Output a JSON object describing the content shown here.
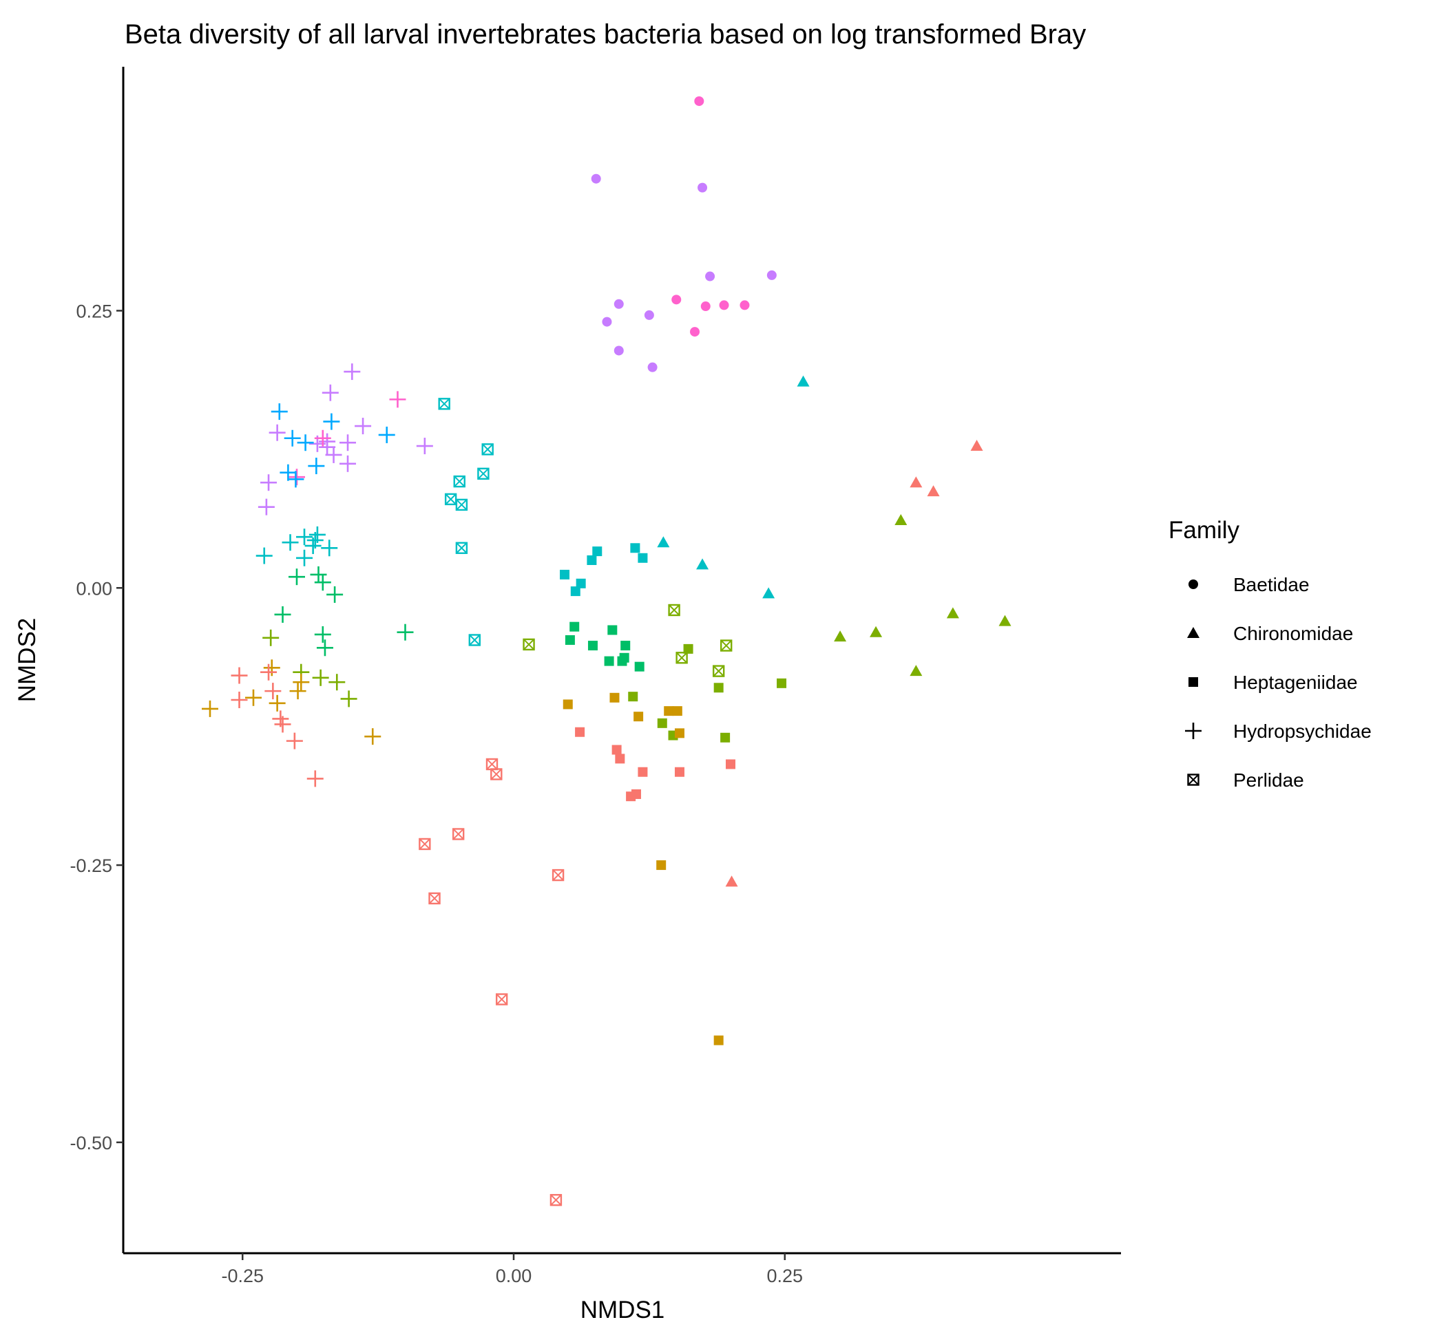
{
  "chart_data": {
    "type": "scatter",
    "title": "Beta diversity of all larval invertebrates bacteria based on log transformed Bray",
    "xlabel": "NMDS1",
    "ylabel": "NMDS2",
    "xlim": [
      -0.36,
      0.56
    ],
    "ylim": [
      -0.6,
      0.47
    ],
    "xticks": [
      -0.25,
      0.0,
      0.25
    ],
    "xtick_labels": [
      "-0.25",
      "0.00",
      "0.25"
    ],
    "yticks": [
      -0.5,
      -0.25,
      0.0,
      0.25
    ],
    "ytick_labels": [
      "-0.50",
      "-0.25",
      "0.00",
      "0.25"
    ],
    "grid": false,
    "legend": {
      "title": "Family",
      "position": "right",
      "entries": [
        {
          "label": "Baetidae",
          "shape": "circle"
        },
        {
          "label": "Chironomidae",
          "shape": "triangle"
        },
        {
          "label": "Heptageniidae",
          "shape": "square"
        },
        {
          "label": "Hydropsychidae",
          "shape": "plus"
        },
        {
          "label": "Perlidae",
          "shape": "boxed-x"
        }
      ]
    },
    "colors": {
      "red": "#F8766D",
      "orange": "#CD9600",
      "olive": "#7CAE00",
      "green": "#00BE67",
      "cyan": "#00BFC4",
      "blue": "#00A9FF",
      "purple": "#C77CFF",
      "pink": "#FF61CC"
    },
    "series": [
      {
        "family": "Baetidae",
        "shape": "circle",
        "color": "pink",
        "points": [
          [
            0.171,
            0.439
          ],
          [
            0.15,
            0.26
          ],
          [
            0.177,
            0.254
          ],
          [
            0.194,
            0.255
          ],
          [
            0.213,
            0.255
          ],
          [
            0.167,
            0.231
          ]
        ]
      },
      {
        "family": "Baetidae",
        "shape": "circle",
        "color": "purple",
        "points": [
          [
            0.076,
            0.369
          ],
          [
            0.174,
            0.361
          ],
          [
            0.097,
            0.256
          ],
          [
            0.181,
            0.281
          ],
          [
            0.238,
            0.282
          ],
          [
            0.125,
            0.246
          ],
          [
            0.086,
            0.24
          ],
          [
            0.097,
            0.214
          ],
          [
            0.128,
            0.199
          ]
        ]
      },
      {
        "family": "Chironomidae",
        "shape": "triangle",
        "color": "cyan",
        "points": [
          [
            0.267,
            0.186
          ],
          [
            0.138,
            0.041
          ],
          [
            0.174,
            0.021
          ],
          [
            0.235,
            -0.005
          ]
        ]
      },
      {
        "family": "Chironomidae",
        "shape": "triangle",
        "color": "red",
        "points": [
          [
            0.427,
            0.128
          ],
          [
            0.371,
            0.095
          ],
          [
            0.387,
            0.087
          ],
          [
            0.201,
            -0.265
          ]
        ]
      },
      {
        "family": "Chironomidae",
        "shape": "triangle",
        "color": "olive",
        "points": [
          [
            0.357,
            0.061
          ],
          [
            0.301,
            -0.044
          ],
          [
            0.334,
            -0.04
          ],
          [
            0.405,
            -0.023
          ],
          [
            0.453,
            -0.03
          ],
          [
            0.371,
            -0.075
          ]
        ]
      },
      {
        "family": "Heptageniidae",
        "shape": "square",
        "color": "cyan",
        "points": [
          [
            0.077,
            0.033
          ],
          [
            0.112,
            0.036
          ],
          [
            0.119,
            0.027
          ],
          [
            0.072,
            0.025
          ],
          [
            0.047,
            0.012
          ],
          [
            0.062,
            0.004
          ],
          [
            0.057,
            -0.003
          ]
        ]
      },
      {
        "family": "Heptageniidae",
        "shape": "square",
        "color": "green",
        "points": [
          [
            0.056,
            -0.035
          ],
          [
            0.091,
            -0.038
          ],
          [
            0.052,
            -0.047
          ],
          [
            0.073,
            -0.052
          ],
          [
            0.103,
            -0.052
          ],
          [
            0.088,
            -0.066
          ],
          [
            0.1,
            -0.066
          ],
          [
            0.102,
            -0.063
          ],
          [
            0.116,
            -0.071
          ]
        ]
      },
      {
        "family": "Heptageniidae",
        "shape": "square",
        "color": "olive",
        "points": [
          [
            0.161,
            -0.055
          ],
          [
            0.247,
            -0.086
          ],
          [
            0.189,
            -0.09
          ],
          [
            0.11,
            -0.098
          ],
          [
            0.137,
            -0.122
          ],
          [
            0.147,
            -0.133
          ],
          [
            0.195,
            -0.135
          ]
        ]
      },
      {
        "family": "Heptageniidae",
        "shape": "square",
        "color": "orange",
        "points": [
          [
            0.05,
            -0.105
          ],
          [
            0.093,
            -0.099
          ],
          [
            0.143,
            -0.111
          ],
          [
            0.151,
            -0.111
          ],
          [
            0.115,
            -0.116
          ],
          [
            0.153,
            -0.131
          ],
          [
            0.136,
            -0.25
          ],
          [
            0.189,
            -0.408
          ]
        ]
      },
      {
        "family": "Heptageniidae",
        "shape": "square",
        "color": "red",
        "points": [
          [
            0.061,
            -0.13
          ],
          [
            0.095,
            -0.146
          ],
          [
            0.098,
            -0.154
          ],
          [
            0.2,
            -0.159
          ],
          [
            0.119,
            -0.166
          ],
          [
            0.153,
            -0.166
          ],
          [
            0.108,
            -0.188
          ],
          [
            0.113,
            -0.186
          ]
        ]
      },
      {
        "family": "Hydropsychidae",
        "shape": "plus",
        "color": "purple",
        "points": [
          [
            -0.149,
            0.195
          ],
          [
            -0.169,
            0.176
          ],
          [
            -0.218,
            0.14
          ],
          [
            -0.139,
            0.146
          ],
          [
            -0.153,
            0.131
          ],
          [
            -0.181,
            0.13
          ],
          [
            -0.172,
            0.132
          ],
          [
            -0.082,
            0.128
          ],
          [
            -0.166,
            0.12
          ],
          [
            -0.153,
            0.112
          ],
          [
            -0.226,
            0.095
          ],
          [
            -0.228,
            0.073
          ],
          [
            -0.172,
            0.127
          ]
        ]
      },
      {
        "family": "Hydropsychidae",
        "shape": "plus",
        "color": "pink",
        "points": [
          [
            -0.107,
            0.17
          ],
          [
            -0.176,
            0.135
          ],
          [
            -0.2,
            0.1
          ]
        ]
      },
      {
        "family": "Hydropsychidae",
        "shape": "plus",
        "color": "blue",
        "points": [
          [
            -0.216,
            0.159
          ],
          [
            -0.168,
            0.15
          ],
          [
            -0.117,
            0.138
          ],
          [
            -0.204,
            0.135
          ],
          [
            -0.192,
            0.131
          ],
          [
            -0.182,
            0.11
          ],
          [
            -0.208,
            0.104
          ],
          [
            -0.201,
            0.098
          ]
        ]
      },
      {
        "family": "Hydropsychidae",
        "shape": "plus",
        "color": "cyan",
        "points": [
          [
            -0.181,
            0.048
          ],
          [
            -0.193,
            0.046
          ],
          [
            -0.185,
            0.038
          ],
          [
            -0.17,
            0.036
          ],
          [
            -0.206,
            0.041
          ],
          [
            -0.183,
            0.043
          ],
          [
            -0.193,
            0.027
          ],
          [
            -0.23,
            0.029
          ]
        ]
      },
      {
        "family": "Hydropsychidae",
        "shape": "plus",
        "color": "green",
        "points": [
          [
            -0.2,
            0.01
          ],
          [
            -0.18,
            0.012
          ],
          [
            -0.176,
            0.005
          ],
          [
            -0.165,
            -0.006
          ],
          [
            -0.213,
            -0.024
          ],
          [
            -0.1,
            -0.04
          ],
          [
            -0.176,
            -0.042
          ],
          [
            -0.174,
            -0.054
          ]
        ]
      },
      {
        "family": "Hydropsychidae",
        "shape": "plus",
        "color": "olive",
        "points": [
          [
            -0.224,
            -0.045
          ],
          [
            -0.196,
            -0.076
          ],
          [
            -0.178,
            -0.081
          ],
          [
            -0.163,
            -0.085
          ],
          [
            -0.152,
            -0.1
          ]
        ]
      },
      {
        "family": "Hydropsychidae",
        "shape": "plus",
        "color": "orange",
        "points": [
          [
            -0.223,
            -0.072
          ],
          [
            -0.196,
            -0.085
          ],
          [
            -0.199,
            -0.093
          ],
          [
            -0.24,
            -0.099
          ],
          [
            -0.218,
            -0.104
          ],
          [
            -0.28,
            -0.109
          ],
          [
            -0.13,
            -0.134
          ]
        ]
      },
      {
        "family": "Hydropsychidae",
        "shape": "plus",
        "color": "red",
        "points": [
          [
            -0.253,
            -0.079
          ],
          [
            -0.226,
            -0.076
          ],
          [
            -0.222,
            -0.093
          ],
          [
            -0.253,
            -0.101
          ],
          [
            -0.215,
            -0.118
          ],
          [
            -0.213,
            -0.123
          ],
          [
            -0.202,
            -0.138
          ],
          [
            -0.183,
            -0.172
          ]
        ]
      },
      {
        "family": "Perlidae",
        "shape": "boxed-x",
        "color": "cyan",
        "points": [
          [
            -0.064,
            0.166
          ],
          [
            -0.024,
            0.125
          ],
          [
            -0.028,
            0.103
          ],
          [
            -0.05,
            0.096
          ],
          [
            -0.058,
            0.08
          ],
          [
            -0.048,
            0.075
          ],
          [
            -0.048,
            0.036
          ],
          [
            -0.036,
            -0.047
          ]
        ]
      },
      {
        "family": "Perlidae",
        "shape": "boxed-x",
        "color": "olive",
        "points": [
          [
            0.148,
            -0.02
          ],
          [
            0.014,
            -0.051
          ],
          [
            0.196,
            -0.052
          ],
          [
            0.155,
            -0.063
          ],
          [
            0.189,
            -0.075
          ]
        ]
      },
      {
        "family": "Perlidae",
        "shape": "boxed-x",
        "color": "red",
        "points": [
          [
            -0.02,
            -0.159
          ],
          [
            -0.016,
            -0.168
          ],
          [
            -0.051,
            -0.222
          ],
          [
            -0.082,
            -0.231
          ],
          [
            0.041,
            -0.259
          ],
          [
            -0.073,
            -0.28
          ],
          [
            -0.011,
            -0.371
          ],
          [
            0.039,
            -0.552
          ]
        ]
      }
    ]
  }
}
